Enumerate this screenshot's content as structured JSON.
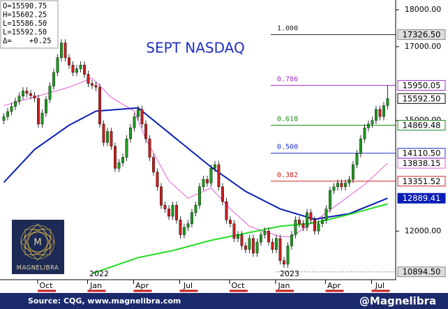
{
  "chart_data": {
    "type": "candlestick",
    "title": "SEPT NASDAQ",
    "ohlc_box": [
      "O=15590.75",
      "H=15602.25",
      "L=15586.50",
      "L=15592.50",
      "Δ=    +0.25"
    ],
    "years": [
      "2022",
      "2023"
    ],
    "up_color": "#1e9a1e",
    "down_color": "#c81e1e",
    "xlim": [
      -1,
      102.1
    ],
    "xticks": [
      {
        "value": 11,
        "label": "Oct"
      },
      {
        "value": 24,
        "label": "Jan"
      },
      {
        "value": 36,
        "label": "Apr"
      },
      {
        "value": 48,
        "label": "Jul"
      },
      {
        "value": 61,
        "label": "Oct"
      },
      {
        "value": 73,
        "label": "Jan"
      },
      {
        "value": 86,
        "label": "Apr"
      },
      {
        "value": 98,
        "label": "Jul"
      }
    ],
    "ylim": [
      10700,
      18170
    ],
    "yticks": [
      {
        "value": 18000,
        "label": "18000.00"
      },
      {
        "value": 17000,
        "label": "17000.00"
      },
      {
        "value": 15000,
        "label": "15000.00"
      },
      {
        "value": 12000,
        "label": "12000.00"
      }
    ],
    "open": [
      15000,
      15100,
      15240,
      15380,
      15520,
      15660,
      15800,
      15730,
      15670,
      15600,
      14900,
      15200,
      15570,
      15930,
      16300,
      16700,
      17100,
      16700,
      16500,
      16300,
      16400,
      16500,
      16250,
      16000,
      15950,
      15900,
      14900,
      14400,
      14700,
      14300,
      13700,
      13850,
      14000,
      14500,
      14800,
      15100,
      15300,
      14900,
      14500,
      14000,
      13600,
      13200,
      12700,
      12600,
      12400,
      12700,
      12300,
      11900,
      12100,
      12200,
      12500,
      12700,
      13200,
      13400,
      13300,
      13700,
      13800,
      13200,
      12800,
      12300,
      12200,
      11800,
      11900,
      11600,
      11500,
      11800,
      11400,
      11700,
      11900,
      12000,
      11700,
      11500,
      11800,
      11200,
      11100,
      11600,
      11900,
      12300,
      12200,
      12100,
      12500,
      12300,
      12000,
      12200,
      12300,
      12600,
      13100,
      13200,
      13300,
      13200,
      13300,
      13400,
      13800,
      14100,
      14500,
      14800,
      14900,
      15000,
      15300,
      15100,
      15400
    ],
    "high": [
      15200,
      15340,
      15480,
      15620,
      15760,
      15900,
      15900,
      15830,
      15770,
      15700,
      15300,
      15670,
      16030,
      16400,
      16800,
      17200,
      17200,
      16800,
      16600,
      16500,
      16600,
      16600,
      16350,
      16100,
      16050,
      16000,
      15000,
      14800,
      14800,
      14400,
      13950,
      14100,
      14600,
      14900,
      15200,
      15400,
      15400,
      15000,
      14600,
      14100,
      13700,
      13300,
      12800,
      12700,
      12800,
      12800,
      12400,
      12200,
      12300,
      12600,
      12800,
      13300,
      13500,
      13500,
      13800,
      13900,
      13900,
      13300,
      12900,
      12400,
      12300,
      12000,
      12000,
      11700,
      11900,
      11900,
      11800,
      12000,
      12100,
      12100,
      11800,
      11900,
      11900,
      11300,
      11700,
      12000,
      12400,
      12400,
      12300,
      12600,
      12600,
      12400,
      12300,
      12400,
      12700,
      13200,
      13300,
      13400,
      13400,
      13400,
      13500,
      13900,
      14200,
      14600,
      14900,
      15000,
      15100,
      15400,
      15400,
      15500,
      15950
    ],
    "low": [
      14900,
      15000,
      15140,
      15280,
      15420,
      15560,
      15630,
      15570,
      15500,
      14800,
      14800,
      15100,
      15470,
      15830,
      16200,
      16600,
      16600,
      16400,
      16200,
      16200,
      16300,
      16150,
      15900,
      15850,
      15800,
      14800,
      14300,
      14300,
      14200,
      13600,
      13600,
      13750,
      13900,
      14400,
      14700,
      15000,
      14800,
      14400,
      13900,
      13500,
      13100,
      12600,
      12500,
      12300,
      12300,
      12200,
      11800,
      11800,
      12000,
      12100,
      12400,
      12600,
      13100,
      13200,
      13200,
      13600,
      13100,
      12700,
      12200,
      12100,
      11700,
      11700,
      11500,
      11400,
      11400,
      11300,
      11300,
      11600,
      11800,
      11600,
      11400,
      11400,
      11100,
      11000,
      11000,
      11500,
      11800,
      12100,
      12000,
      12000,
      12200,
      11900,
      11900,
      12100,
      12200,
      12500,
      13000,
      13100,
      13100,
      13100,
      13200,
      13300,
      13700,
      14000,
      14400,
      14700,
      14800,
      14900,
      15000,
      15000,
      15300
    ],
    "close": [
      15100,
      15240,
      15380,
      15520,
      15660,
      15800,
      15730,
      15670,
      15600,
      14900,
      15200,
      15570,
      15930,
      16300,
      16700,
      17100,
      16700,
      16500,
      16300,
      16400,
      16500,
      16250,
      16000,
      15950,
      15900,
      14900,
      14400,
      14700,
      14300,
      13700,
      13850,
      14000,
      14500,
      14800,
      15100,
      15300,
      14900,
      14500,
      14000,
      13600,
      13200,
      12700,
      12600,
      12400,
      12700,
      12300,
      11900,
      12100,
      12200,
      12500,
      12700,
      13200,
      13400,
      13300,
      13700,
      13800,
      13200,
      12800,
      12300,
      12200,
      11800,
      11900,
      11600,
      11500,
      11800,
      11400,
      11700,
      11900,
      12000,
      11700,
      11500,
      11800,
      11200,
      11100,
      11600,
      11900,
      12300,
      12200,
      12100,
      12500,
      12300,
      12000,
      12200,
      12300,
      12600,
      13100,
      13200,
      13300,
      13200,
      13300,
      13400,
      13800,
      14100,
      14500,
      14800,
      14900,
      15000,
      15300,
      15100,
      15400,
      15592.5
    ],
    "current_price": {
      "value": 15592.5,
      "label": "15592.50"
    },
    "low_marker": {
      "value": 10894.5,
      "label": "10894.50"
    },
    "series": [
      {
        "color": "#e85ad8",
        "x": [
          0,
          17,
          23,
          28,
          34,
          37,
          43,
          48,
          54,
          59,
          64,
          72,
          75,
          83,
          88,
          94,
          100
        ],
        "values": [
          15400,
          15900,
          16150,
          15620,
          15250,
          14490,
          13360,
          12890,
          13170,
          12600,
          12130,
          11850,
          11850,
          12420,
          12800,
          13260,
          13838.15
        ],
        "box": true
      },
      {
        "color": "#0a1eb4",
        "x": [
          0,
          8,
          17,
          24,
          35,
          44,
          54,
          63,
          72,
          81,
          90,
          100
        ],
        "values": [
          13320,
          14210,
          14870,
          15250,
          15340,
          14580,
          13735,
          13075,
          12600,
          12320,
          12470,
          12889.41
        ],
        "box": true
      },
      {
        "color": "#22dd22",
        "x": [
          23,
          35,
          44,
          54,
          63,
          72,
          81,
          90,
          100
        ],
        "values": [
          10850,
          11280,
          11470,
          11750,
          11940,
          12130,
          12220,
          12450,
          12735
        ],
        "box": false
      }
    ],
    "fib_levels": [
      {
        "ratio": "1.000",
        "price": {
          "value": 17326.5,
          "label": "17326.50"
        },
        "color": "#222222"
      },
      {
        "ratio": "0.786",
        "price": {
          "value": 15950.05,
          "label": "15950.05"
        },
        "color": "#9b2fc8"
      },
      {
        "ratio": "0.618",
        "price": {
          "value": 14869.48,
          "label": "14869.48"
        },
        "color": "#1e8a1e"
      },
      {
        "ratio": "0.500",
        "price": {
          "value": 14110.5,
          "label": "14110.50"
        },
        "color": "#2233cc"
      },
      {
        "ratio": "0.382",
        "price": {
          "value": 13351.52,
          "label": "13351.52"
        },
        "color": "#d02020"
      }
    ],
    "logo_text": "MAGNELIBRA",
    "source": "Source: CQG, www.magnelibra.com",
    "handle": "@Magnelibra"
  }
}
